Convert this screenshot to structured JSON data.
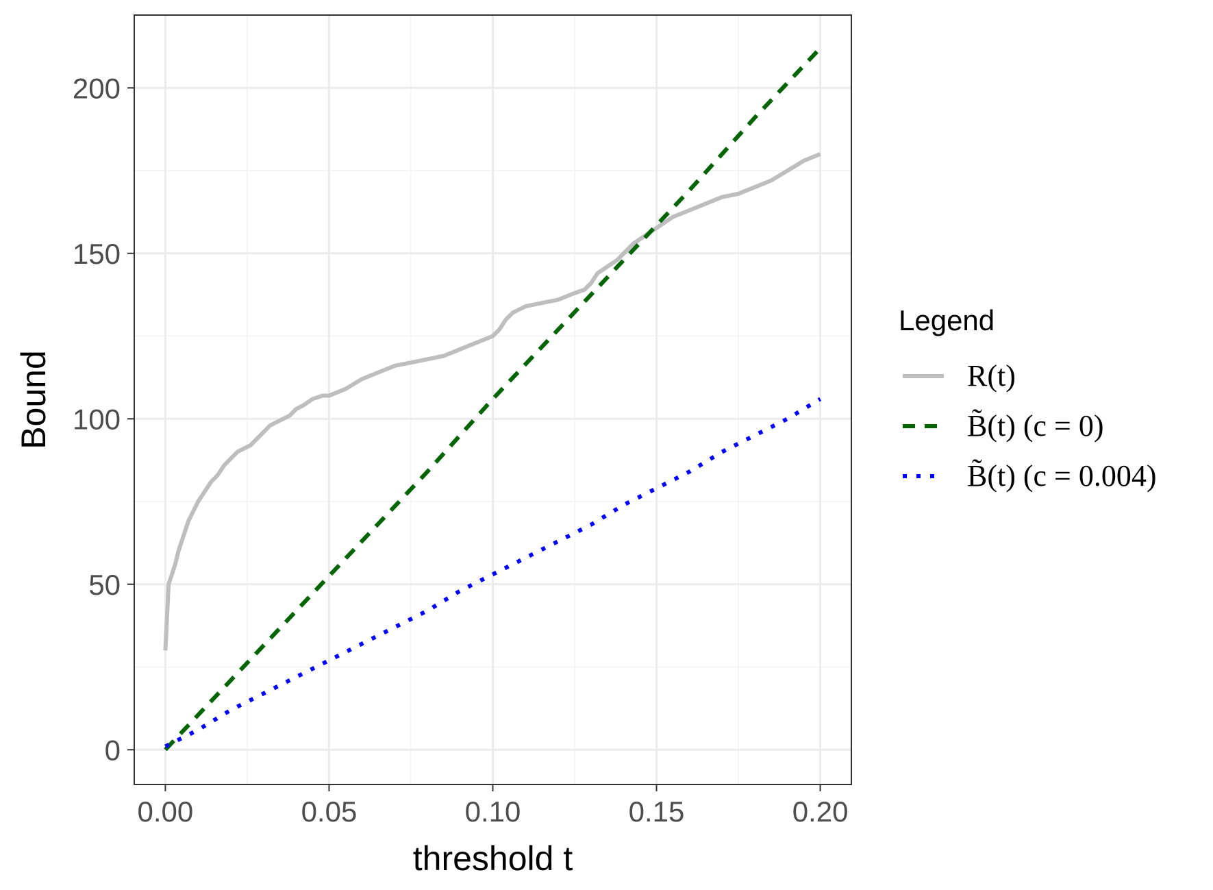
{
  "chart_data": {
    "type": "line",
    "xlabel": "threshold t",
    "ylabel": "Bound",
    "xlim": [
      -0.0095,
      0.2095
    ],
    "ylim": [
      -10.5,
      222
    ],
    "x_ticks": [
      0.0,
      0.05,
      0.1,
      0.15,
      0.2
    ],
    "x_tick_labels": [
      "0.00",
      "0.05",
      "0.10",
      "0.15",
      "0.20"
    ],
    "y_ticks": [
      0,
      50,
      100,
      150,
      200
    ],
    "y_tick_labels": [
      "0",
      "50",
      "100",
      "150",
      "200"
    ],
    "grid": true,
    "legend": {
      "title": "Legend",
      "position": "right",
      "entries": [
        "R(t)",
        "B̃(t) (c = 0)",
        "B̃(t) (c = 0.004)"
      ]
    },
    "series": [
      {
        "name": "R(t)",
        "style": "solid",
        "color": "#bebebe",
        "x": [
          0.0,
          0.0005,
          0.001,
          0.002,
          0.003,
          0.004,
          0.005,
          0.006,
          0.007,
          0.008,
          0.009,
          0.01,
          0.012,
          0.014,
          0.016,
          0.018,
          0.02,
          0.022,
          0.024,
          0.026,
          0.028,
          0.03,
          0.032,
          0.034,
          0.036,
          0.038,
          0.04,
          0.042,
          0.045,
          0.048,
          0.05,
          0.055,
          0.06,
          0.065,
          0.07,
          0.075,
          0.08,
          0.085,
          0.09,
          0.095,
          0.1,
          0.102,
          0.104,
          0.106,
          0.108,
          0.11,
          0.115,
          0.12,
          0.125,
          0.128,
          0.13,
          0.132,
          0.135,
          0.138,
          0.14,
          0.143,
          0.146,
          0.149,
          0.152,
          0.155,
          0.16,
          0.165,
          0.17,
          0.175,
          0.18,
          0.185,
          0.19,
          0.195,
          0.2
        ],
        "y": [
          30,
          40,
          50,
          53,
          56,
          60,
          63,
          66,
          69,
          71,
          73,
          75,
          78,
          81,
          83,
          86,
          88,
          90,
          91,
          92,
          94,
          96,
          98,
          99,
          100,
          101,
          103,
          104,
          106,
          107,
          107,
          109,
          112,
          114,
          116,
          117,
          118,
          119,
          121,
          123,
          125,
          127,
          130,
          132,
          133,
          134,
          135,
          136,
          138,
          139,
          141,
          144,
          146,
          148,
          150,
          153,
          155,
          157,
          159,
          161,
          163,
          165,
          167,
          168,
          170,
          172,
          175,
          178,
          180
        ]
      },
      {
        "name": "B̃(t) (c = 0)",
        "style": "dashed",
        "color": "#006400",
        "x": [
          0.0,
          0.02,
          0.04,
          0.06,
          0.08,
          0.1,
          0.12,
          0.14,
          0.16,
          0.18,
          0.2
        ],
        "y": [
          0,
          21,
          42,
          63,
          84,
          106,
          127,
          148,
          169,
          191,
          212
        ]
      },
      {
        "name": "B̃(t) (c = 0.004)",
        "style": "dotted",
        "color": "#0000ff",
        "x": [
          0.0,
          0.01,
          0.02,
          0.03,
          0.04,
          0.05,
          0.06,
          0.07,
          0.08,
          0.09,
          0.1,
          0.11,
          0.12,
          0.13,
          0.14,
          0.15,
          0.16,
          0.17,
          0.18,
          0.19,
          0.2
        ],
        "y": [
          1,
          6,
          12,
          17,
          22,
          27,
          32,
          37,
          42,
          48,
          53,
          58,
          63,
          68,
          74,
          79,
          84,
          90,
          95,
          100,
          106
        ]
      }
    ]
  }
}
